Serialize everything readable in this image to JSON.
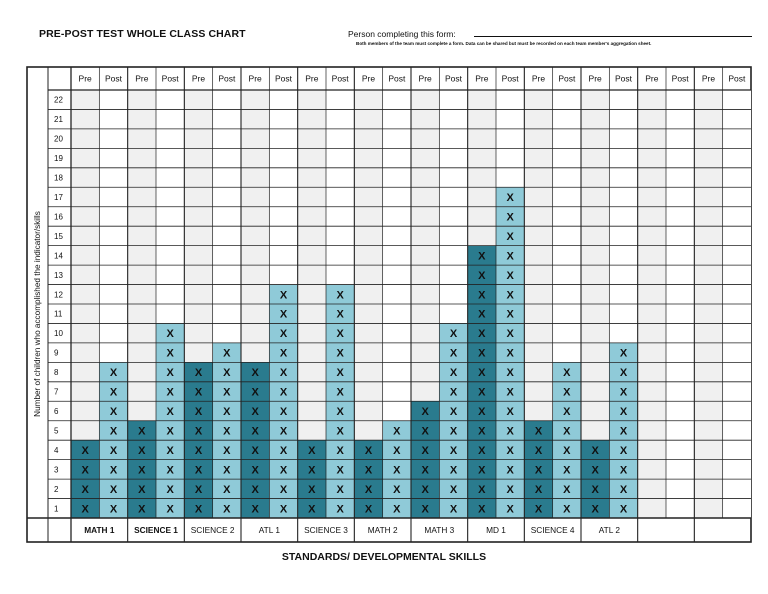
{
  "header": {
    "title": "PRE-POST TEST WHOLE CLASS CHART",
    "person_label": "Person completing this form:",
    "note": "Both members of the team must complete a form.  Data can be shared but must be recorded on each team member's aggregation sheet."
  },
  "footer": {
    "label": "STANDARDS/ DEVELOPMENTAL SKILLS"
  },
  "chart_data": {
    "type": "table",
    "y_axis_label": "Number of children who accomplished the indicator/skills",
    "x_axis_label": "STANDARDS/ DEVELOPMENTAL SKILLS",
    "row_numbers": [
      22,
      21,
      20,
      19,
      18,
      17,
      16,
      15,
      14,
      13,
      12,
      11,
      10,
      9,
      8,
      7,
      6,
      5,
      4,
      3,
      2,
      1
    ],
    "sub_headers": [
      "Pre",
      "Post"
    ],
    "mark": "X",
    "colors": {
      "pre_fill": "#2a7b8e",
      "post_fill": "#8fcad8",
      "empty_fill": "#f0f0f0",
      "grid": "#222222"
    },
    "columns": [
      {
        "name": "MATH 1",
        "bold": true,
        "pre": 4,
        "post": 8
      },
      {
        "name": "SCIENCE 1",
        "bold": true,
        "pre": 5,
        "post": 10
      },
      {
        "name": "SCIENCE 2",
        "bold": false,
        "pre": 8,
        "post": 9
      },
      {
        "name": "ATL 1",
        "bold": false,
        "pre": 8,
        "post": 12
      },
      {
        "name": "SCIENCE 3",
        "bold": false,
        "pre": 4,
        "post": 12
      },
      {
        "name": "MATH 2",
        "bold": false,
        "pre": 4,
        "post": 5
      },
      {
        "name": "MATH 3",
        "bold": false,
        "pre": 6,
        "post": 10
      },
      {
        "name": "MD 1",
        "bold": false,
        "pre": 14,
        "post": 17
      },
      {
        "name": "SCIENCE 4",
        "bold": false,
        "pre": 5,
        "post": 8
      },
      {
        "name": "ATL 2",
        "bold": false,
        "pre": 4,
        "post": 9
      },
      {
        "name": "",
        "bold": false,
        "pre": 0,
        "post": 0
      },
      {
        "name": "",
        "bold": false,
        "pre": 0,
        "post": 0
      }
    ]
  }
}
